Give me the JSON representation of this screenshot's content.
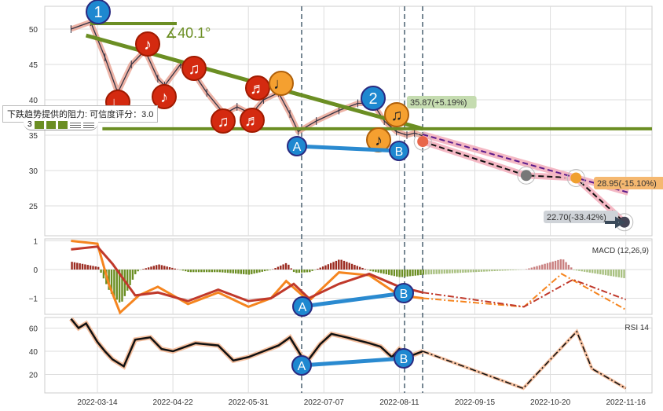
{
  "chart_data": {
    "type": "line",
    "x_ticks": [
      "2022-03-14",
      "2022-04-22",
      "2022-05-31",
      "2022-07-07",
      "2022-08-11",
      "2022-09-15",
      "2022-10-20",
      "2022-11-16"
    ],
    "price": {
      "yticks": [
        25,
        30,
        35,
        40,
        45,
        50
      ],
      "series": [
        [
          -0.35,
          50
        ],
        [
          -0.09,
          51
        ],
        [
          0.1,
          46
        ],
        [
          0.27,
          41
        ],
        [
          0.45,
          45
        ],
        [
          0.63,
          47
        ],
        [
          0.8,
          43
        ],
        [
          0.89,
          42
        ],
        [
          1.1,
          45
        ],
        [
          1.26,
          44
        ],
        [
          1.45,
          41
        ],
        [
          1.68,
          38
        ],
        [
          1.85,
          39
        ],
        [
          2.04,
          38
        ],
        [
          2.2,
          40
        ],
        [
          2.4,
          41
        ],
        [
          2.55,
          38
        ],
        [
          2.66,
          35.5
        ],
        [
          2.9,
          37
        ],
        [
          3.2,
          38.5
        ],
        [
          3.45,
          39.5
        ],
        [
          3.65,
          39.5
        ],
        [
          3.8,
          37
        ],
        [
          3.96,
          35.5
        ],
        [
          4.1,
          35
        ],
        [
          4.2,
          35.3
        ],
        [
          4.31,
          34.9
        ]
      ],
      "forecast": [
        [
          4.31,
          34.1
        ],
        [
          5.68,
          29.3
        ],
        [
          6.34,
          28.95
        ],
        [
          6.98,
          22.7
        ]
      ],
      "forecast_alt": [
        [
          4.31,
          35.1
        ],
        [
          7.03,
          26.9
        ]
      ],
      "resistance_level": 35.9,
      "trendline": [
        [
          -0.15,
          49.1
        ],
        [
          4.31,
          35.9
        ]
      ],
      "labels": {
        "target1": "35.87(+5.19%)",
        "target2": "28.95(-15.10%)",
        "target3": "22.70(-33.42%)",
        "angle": "∡40.1°"
      },
      "wave_labels": [
        "1",
        "2"
      ],
      "ab": [
        "A",
        "B"
      ]
    },
    "macd": {
      "title": "MACD (12,26,9)",
      "yticks": [
        -1,
        0,
        1
      ],
      "dif": [
        [
          -0.35,
          1.0
        ],
        [
          0.0,
          0.9
        ],
        [
          0.15,
          -0.5
        ],
        [
          0.3,
          -1.5
        ],
        [
          0.55,
          -0.9
        ],
        [
          0.8,
          -0.6
        ],
        [
          1.2,
          -1.2
        ],
        [
          1.6,
          -0.8
        ],
        [
          2.0,
          -1.3
        ],
        [
          2.3,
          -1.0
        ],
        [
          2.5,
          -0.4
        ],
        [
          2.8,
          -1.1
        ],
        [
          3.2,
          -0.1
        ],
        [
          3.6,
          -0.2
        ],
        [
          4.0,
          -0.9
        ],
        [
          4.31,
          -1.0
        ]
      ],
      "dea": [
        [
          -0.35,
          0.7
        ],
        [
          0.0,
          0.8
        ],
        [
          0.2,
          0.2
        ],
        [
          0.5,
          -0.9
        ],
        [
          0.8,
          -0.8
        ],
        [
          1.2,
          -1.1
        ],
        [
          1.6,
          -0.7
        ],
        [
          2.0,
          -1.1
        ],
        [
          2.3,
          -1.0
        ],
        [
          2.6,
          -0.5
        ],
        [
          2.8,
          -1.0
        ],
        [
          3.2,
          -0.5
        ],
        [
          3.6,
          -0.15
        ],
        [
          4.0,
          -0.6
        ],
        [
          4.31,
          -0.8
        ]
      ],
      "dif_forecast": [
        [
          4.31,
          -1.0
        ],
        [
          5.65,
          -1.3
        ],
        [
          6.15,
          -0.15
        ],
        [
          7.0,
          -1.4
        ]
      ],
      "dea_forecast": [
        [
          4.31,
          -0.8
        ],
        [
          5.65,
          -1.3
        ],
        [
          6.3,
          -0.35
        ],
        [
          7.0,
          -1.05
        ]
      ]
    },
    "rsi": {
      "title": "RSI 14",
      "yticks": [
        20,
        40,
        60
      ],
      "series": [
        [
          -0.35,
          68
        ],
        [
          -0.25,
          60
        ],
        [
          -0.15,
          64
        ],
        [
          0.0,
          48
        ],
        [
          0.1,
          40
        ],
        [
          0.2,
          33
        ],
        [
          0.35,
          27
        ],
        [
          0.5,
          50
        ],
        [
          0.7,
          52
        ],
        [
          0.85,
          42
        ],
        [
          1.0,
          40
        ],
        [
          1.3,
          47
        ],
        [
          1.6,
          45
        ],
        [
          1.8,
          32
        ],
        [
          2.0,
          35
        ],
        [
          2.2,
          40
        ],
        [
          2.4,
          45
        ],
        [
          2.55,
          52
        ],
        [
          2.7,
          36
        ],
        [
          2.8,
          33
        ],
        [
          2.95,
          46
        ],
        [
          3.1,
          55
        ],
        [
          3.3,
          52
        ],
        [
          3.6,
          47
        ],
        [
          3.75,
          44
        ],
        [
          3.9,
          35
        ],
        [
          4.0,
          42
        ],
        [
          4.15,
          36
        ],
        [
          4.31,
          40
        ]
      ],
      "forecast": [
        [
          4.31,
          40
        ],
        [
          5.64,
          8
        ],
        [
          6.35,
          57
        ],
        [
          6.55,
          25
        ],
        [
          7.0,
          8
        ]
      ]
    }
  },
  "tooltip": {
    "text": "下跌趋势提供的阻力: 可信度评分：3.0",
    "score": "3"
  },
  "notes": {
    "red": [
      "♩",
      "♪",
      "♪",
      "♫",
      "♫",
      "♬",
      "♬"
    ],
    "orange": [
      "♩",
      "♪",
      "♫"
    ]
  }
}
